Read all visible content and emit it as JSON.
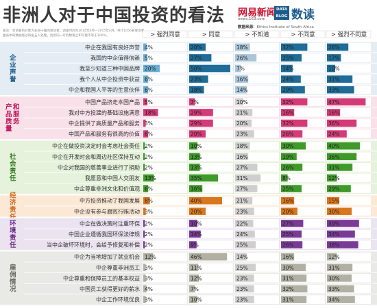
{
  "title": "非洲人对于中国投资的看法",
  "note": {
    "line1": "备注：本调查的对象为非洲十国的受访者，调查时间为2014年6月—2015年4月，共计1056名受访者。",
    "line2": "图表中的数据经过四舍五入处理，因此同一行的数值之和可能不等于100%。"
  },
  "logo": {
    "main": "网易新闻",
    "sub": "news.163.com",
    "badge_line1": "DATA",
    "badge_line2": "BLOG",
    "brand": "数读"
  },
  "source": {
    "label": "数据来源：",
    "value": "Ethics Institute of South Africa"
  },
  "chart_data": {
    "type": "bar",
    "series": [
      {
        "name": "强烈同意",
        "color": "#4a9ec4"
      },
      {
        "name": "同意",
        "color": "#1f6d97"
      },
      {
        "name": "不知道",
        "color": "#adc8d9"
      },
      {
        "name": "不同意",
        "color": "#1f6d97"
      },
      {
        "name": "强烈不同意",
        "color": "#1f6d97"
      }
    ],
    "groups": [
      {
        "name": "企业声誉",
        "bg": "#e5edf4",
        "label_color": "#1c5b8c",
        "bar_color": "#1f6d97",
        "rows": [
          {
            "label": "中企在我国有良好声誉",
            "values": [
              4,
              20,
              18,
              32,
              26
            ]
          },
          {
            "label": "我国的中企值得信赖",
            "values": [
              5,
              27,
              26,
              25,
              17
            ]
          },
          {
            "label": "我至少知道三种中国品牌",
            "values": [
              20,
              50,
              7,
              14,
              10
            ]
          },
          {
            "label": "我个人从中企投资中获益",
            "values": [
              6,
              23,
              16,
              24,
              31
            ]
          },
          {
            "label": "中企和我国人平等的生意伙伴",
            "values": [
              6,
              18,
              14,
              29,
              33
            ]
          }
        ]
      },
      {
        "name": "产品质量和服务",
        "bg": "#f9e1ea",
        "label_color": "#c2185b",
        "bar_color": "#d33b78",
        "rows": [
          {
            "label": "中国产品挤走本国产品",
            "values": [
              5,
              7,
              10,
              32,
              47
            ]
          },
          {
            "label": "我对中方投建的基础设施满意",
            "values": [
              18,
              29,
              21,
              16,
              16
            ]
          },
          {
            "label": "中企提供了高质量产品和服务",
            "values": [
              3,
              29,
              20,
              32,
              36
            ]
          },
          {
            "label": "中国产品和服务有很高的价值",
            "values": [
              6,
              20,
              23,
              26,
              24
            ]
          }
        ]
      },
      {
        "name": "社会责任",
        "bg": "#e6f2dc",
        "label_color": "#2e7d1e",
        "bar_color": "#3f9a2a",
        "rows": [
          {
            "label": "中企在做投资决定时会考虑社会责任",
            "values": [
              2,
              10,
              18,
              30,
              40
            ]
          },
          {
            "label": "中企在开发时会和周边社区保持互动",
            "values": [
              2,
              13,
              16,
              19,
              36
            ]
          },
          {
            "label": "中企对我国的慈善事业进行了捐助",
            "values": [
              2,
              13,
              27,
              26,
              31
            ]
          },
          {
            "label": "我愿意和中国人交朋友",
            "values": [
              13,
              35,
              31,
              8,
              12
            ]
          },
          {
            "label": "中企尊重非洲文化和价值观",
            "values": [
              6,
              16,
              27,
              25,
              29
            ]
          }
        ]
      },
      {
        "name": "经济责任",
        "bg": "#fbe9d6",
        "label_color": "#d2691e",
        "bar_color": "#d9771f",
        "rows": [
          {
            "label": "中方投资推动了我国发展",
            "values": [
              8,
              40,
              21,
              16,
              15
            ]
          },
          {
            "label": "中企没有参与腐败行贿活动",
            "values": [
              3,
              20,
              23,
              20,
              30
            ]
          }
        ]
      },
      {
        "name": "环境责任",
        "bg": "#ece3f1",
        "label_color": "#6a2a86",
        "bar_color": "#7a3b97",
        "rows": [
          {
            "label": "中企在做决策时注重环保",
            "values": [
              2,
              10,
              22,
              27,
              39
            ]
          },
          {
            "label": "中国企业遵循我国环保法律规",
            "values": [
              2,
              14,
              24,
              25,
              34
            ]
          },
          {
            "label": "当中企破坏环境时，会给予修复和补偿",
            "values": [
              2,
              9,
              25,
              26,
              38
            ]
          }
        ]
      },
      {
        "name": "雇佣情况",
        "bg": "#e9e9e6",
        "label_color": "#6b6b62",
        "bar_color": "#b1b1a3",
        "rows": [
          {
            "label": "中企为当地增加了就业机会",
            "values": [
              12,
              46,
              14,
              16,
              12
            ]
          },
          {
            "label": "中企尊重非洲员工",
            "values": [
              3,
              11,
              25,
              30,
              31
            ]
          },
          {
            "label": "中企尊重和保障员工的基本权益",
            "values": [
              3,
              12,
              23,
              31,
              30
            ]
          },
          {
            "label": "中国员工获得更好的薪水",
            "values": [
              4,
              7,
              23,
              32,
              33
            ]
          },
          {
            "label": "中企工作环境优良",
            "values": [
              3,
              10,
              23,
              31,
              34
            ]
          }
        ]
      }
    ]
  }
}
